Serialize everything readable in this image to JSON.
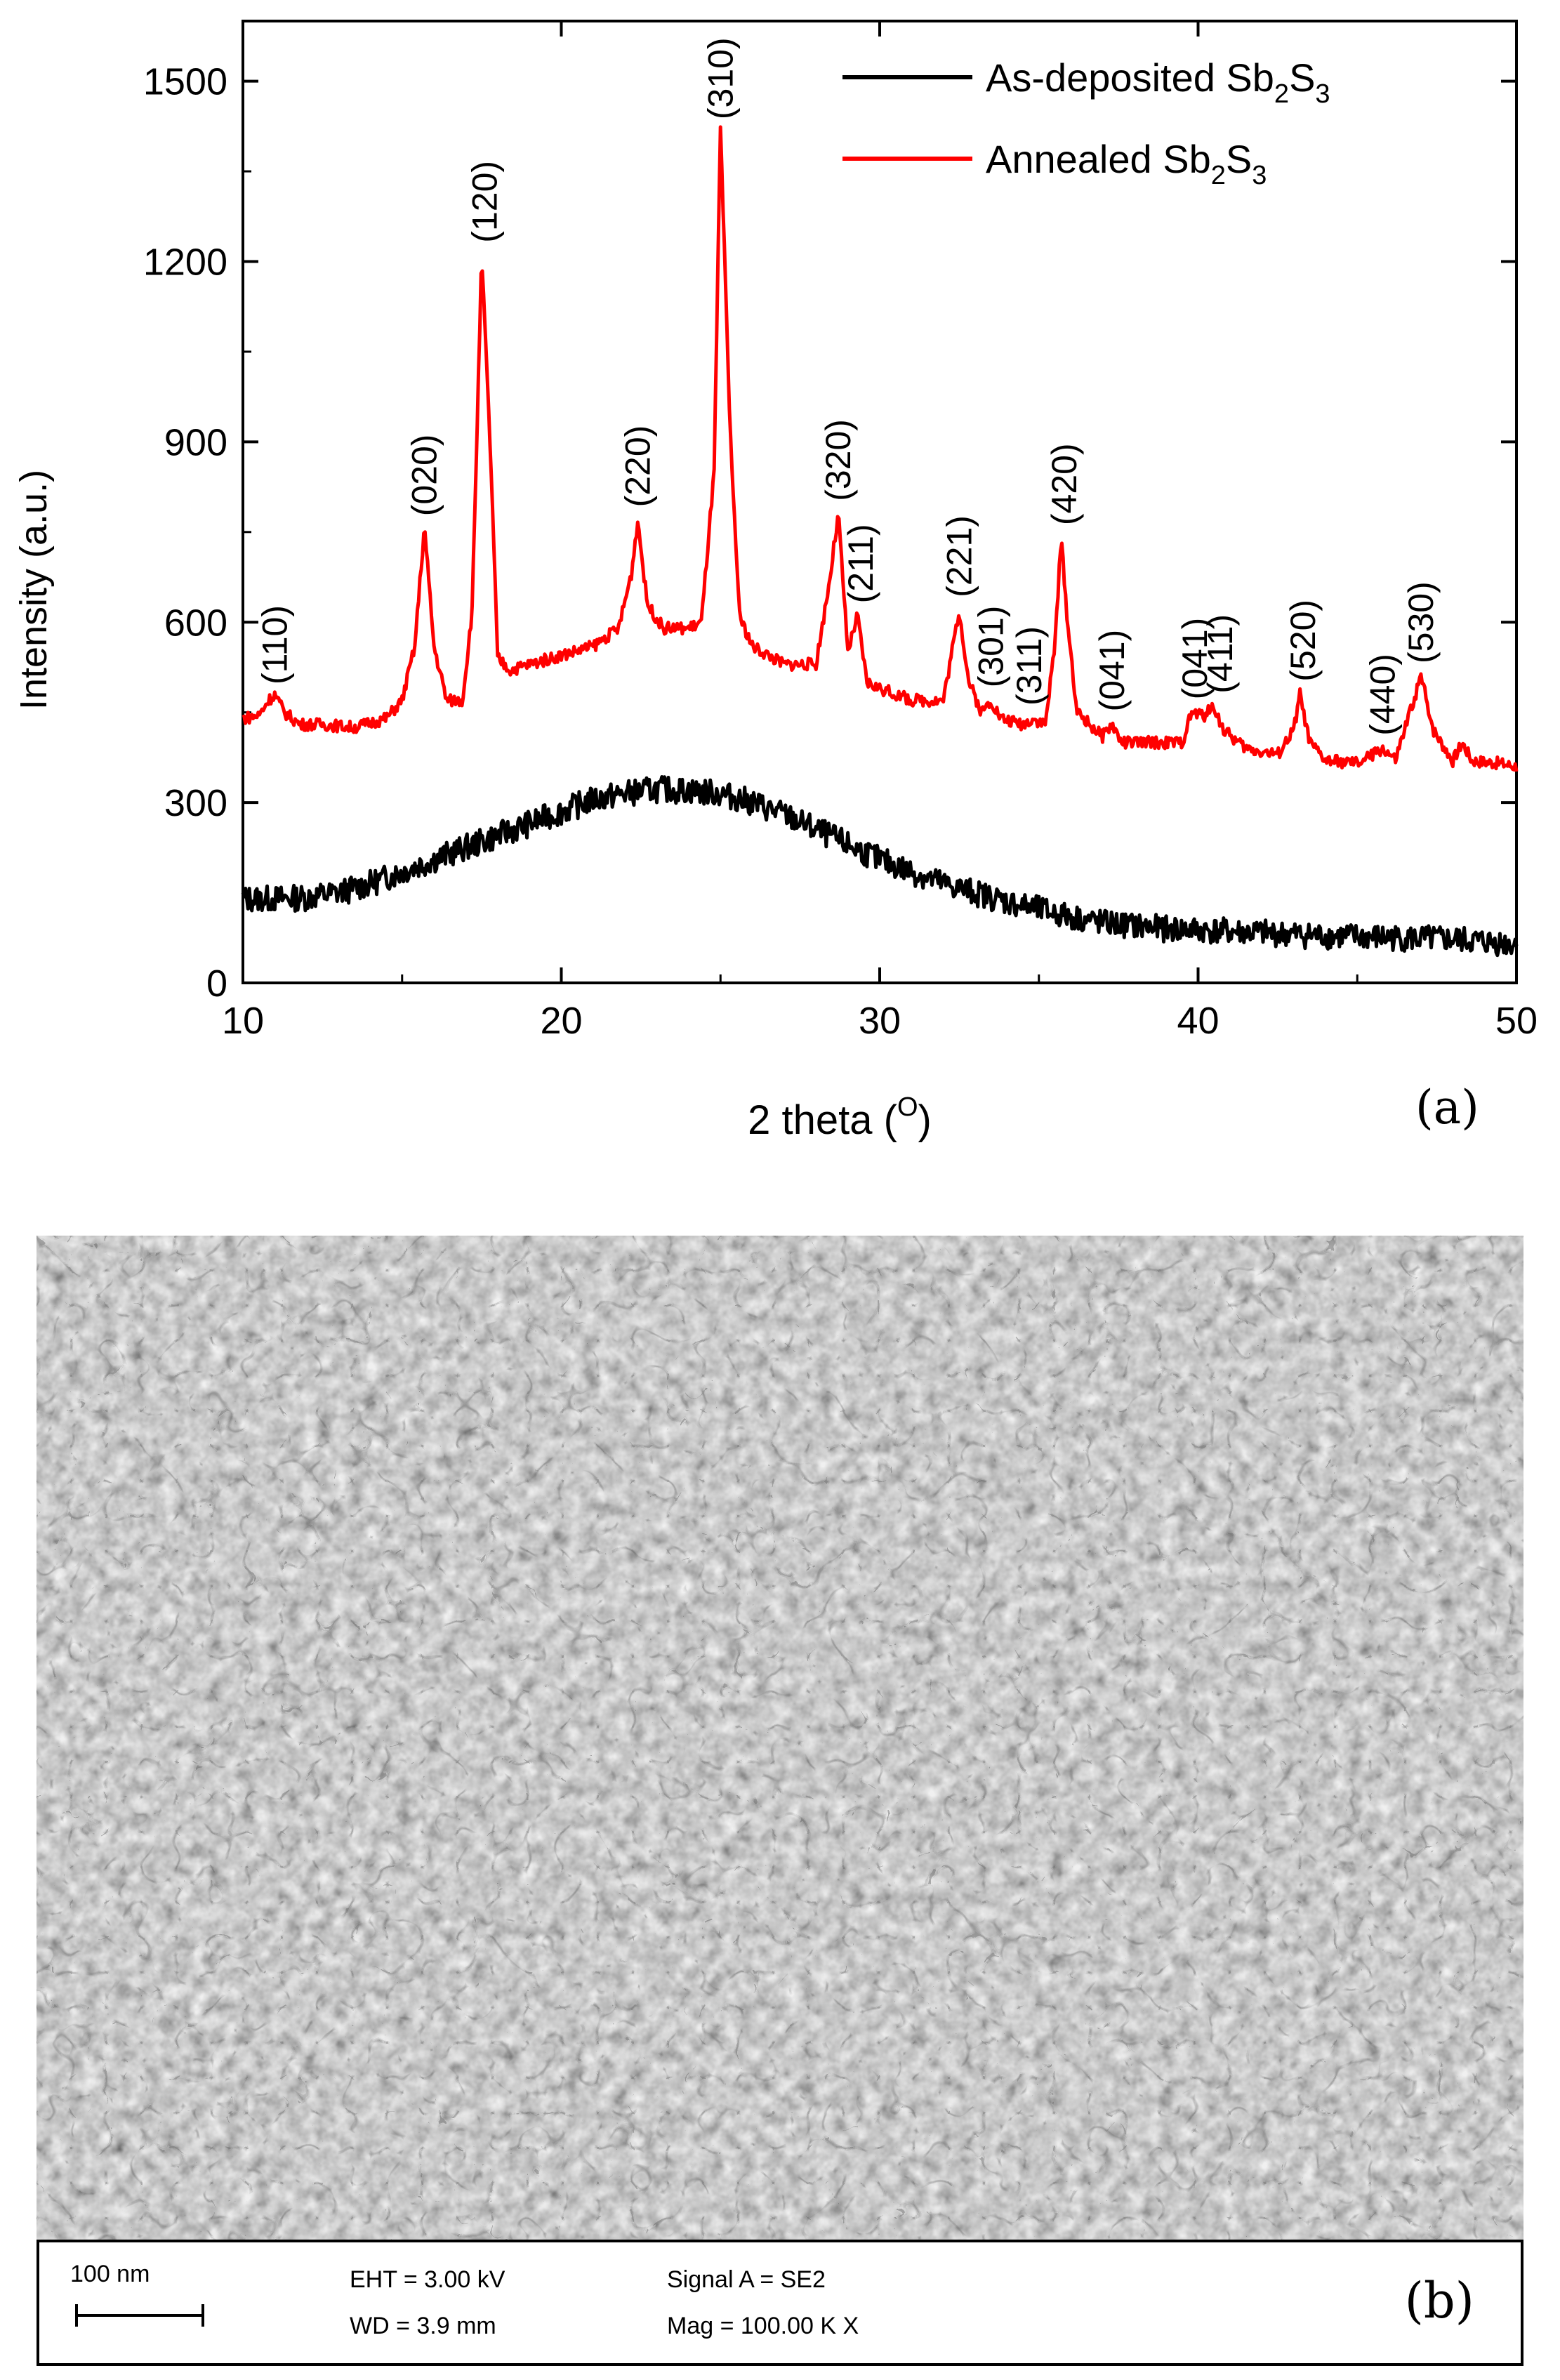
{
  "chart_data": {
    "type": "line",
    "xlabel": "2 theta (",
    "xlabel_sup": "O",
    "xlabel_end": ")",
    "ylabel": "Intensity (a.u.)",
    "xlim": [
      10,
      50
    ],
    "ylim": [
      0,
      1600
    ],
    "xticks": [
      10,
      20,
      30,
      40,
      50
    ],
    "yticks": [
      0,
      300,
      600,
      900,
      1200,
      1500
    ],
    "grid": false,
    "legend_position": "top-right",
    "panel_label": "(a)",
    "series": [
      {
        "name_main": "As-deposited Sb",
        "name_sub1": "2",
        "name_mid": "S",
        "name_sub2": "3",
        "color": "#000000",
        "points": [
          [
            10,
            140
          ],
          [
            11,
            140
          ],
          [
            12,
            142
          ],
          [
            13,
            150
          ],
          [
            14,
            165
          ],
          [
            15,
            185
          ],
          [
            16,
            205
          ],
          [
            17,
            225
          ],
          [
            18,
            245
          ],
          [
            19,
            265
          ],
          [
            20,
            285
          ],
          [
            21,
            305
          ],
          [
            22,
            315
          ],
          [
            23,
            322
          ],
          [
            24,
            320
          ],
          [
            25,
            315
          ],
          [
            26,
            300
          ],
          [
            27,
            280
          ],
          [
            28,
            255
          ],
          [
            29,
            230
          ],
          [
            30,
            205
          ],
          [
            31,
            185
          ],
          [
            32,
            165
          ],
          [
            33,
            150
          ],
          [
            34,
            135
          ],
          [
            35,
            122
          ],
          [
            36,
            110
          ],
          [
            37,
            100
          ],
          [
            38,
            95
          ],
          [
            39,
            90
          ],
          [
            40,
            88
          ],
          [
            42,
            83
          ],
          [
            44,
            78
          ],
          [
            46,
            75
          ],
          [
            48,
            72
          ],
          [
            50,
            65
          ]
        ]
      },
      {
        "name_main": "Annealed Sb",
        "name_sub1": "2",
        "name_mid": "S",
        "name_sub2": "3",
        "color": "#ff0000",
        "points": [
          [
            10,
            440
          ],
          [
            10.5,
            445
          ],
          [
            10.8,
            470
          ],
          [
            11.0,
            480
          ],
          [
            11.3,
            450
          ],
          [
            11.8,
            430
          ],
          [
            12.5,
            430
          ],
          [
            13.5,
            425
          ],
          [
            14.5,
            440
          ],
          [
            15.0,
            470
          ],
          [
            15.4,
            560
          ],
          [
            15.7,
            760
          ],
          [
            16.0,
            560
          ],
          [
            16.4,
            470
          ],
          [
            16.9,
            470
          ],
          [
            17.2,
            620
          ],
          [
            17.5,
            1210
          ],
          [
            17.8,
            850
          ],
          [
            18.0,
            540
          ],
          [
            18.4,
            520
          ],
          [
            19,
            530
          ],
          [
            20,
            545
          ],
          [
            21,
            560
          ],
          [
            21.8,
            590
          ],
          [
            22.2,
            680
          ],
          [
            22.4,
            770
          ],
          [
            22.7,
            630
          ],
          [
            23.2,
            590
          ],
          [
            24.0,
            590
          ],
          [
            24.4,
            600
          ],
          [
            24.8,
            850
          ],
          [
            25.0,
            1420
          ],
          [
            25.3,
            920
          ],
          [
            25.6,
            610
          ],
          [
            26.0,
            560
          ],
          [
            27.0,
            530
          ],
          [
            28.0,
            530
          ],
          [
            28.4,
            660
          ],
          [
            28.7,
            780
          ],
          [
            29.0,
            550
          ],
          [
            29.3,
            610
          ],
          [
            29.6,
            500
          ],
          [
            30.0,
            490
          ],
          [
            31.0,
            470
          ],
          [
            32.0,
            470
          ],
          [
            32.3,
            560
          ],
          [
            32.5,
            620
          ],
          [
            32.8,
            500
          ],
          [
            33.2,
            450
          ],
          [
            33.5,
            470
          ],
          [
            33.8,
            440
          ],
          [
            34.5,
            430
          ],
          [
            34.8,
            440
          ],
          [
            35.2,
            430
          ],
          [
            35.5,
            560
          ],
          [
            35.7,
            740
          ],
          [
            35.9,
            600
          ],
          [
            36.2,
            450
          ],
          [
            37.0,
            410
          ],
          [
            37.3,
            430
          ],
          [
            37.6,
            400
          ],
          [
            38.5,
            400
          ],
          [
            39.5,
            400
          ],
          [
            39.8,
            450
          ],
          [
            40.2,
            445
          ],
          [
            40.5,
            460
          ],
          [
            40.8,
            420
          ],
          [
            41.5,
            390
          ],
          [
            42.5,
            380
          ],
          [
            43.0,
            420
          ],
          [
            43.2,
            480
          ],
          [
            43.5,
            400
          ],
          [
            44.0,
            370
          ],
          [
            45.0,
            365
          ],
          [
            45.5,
            380
          ],
          [
            45.8,
            390
          ],
          [
            46.2,
            370
          ],
          [
            46.6,
            440
          ],
          [
            47.0,
            510
          ],
          [
            47.4,
            420
          ],
          [
            48.0,
            370
          ],
          [
            48.3,
            400
          ],
          [
            48.6,
            370
          ],
          [
            49.5,
            365
          ],
          [
            50,
            360
          ]
        ]
      }
    ],
    "annotations": [
      {
        "label": "(110)",
        "x": 11.0,
        "y": 480
      },
      {
        "label": "(020)",
        "x": 15.7,
        "y": 760
      },
      {
        "label": "(120)",
        "x": 17.6,
        "y": 1215
      },
      {
        "label": "(220)",
        "x": 22.4,
        "y": 775
      },
      {
        "label": "(310)",
        "x": 25.0,
        "y": 1420
      },
      {
        "label": "(320)",
        "x": 28.7,
        "y": 785
      },
      {
        "label": "(211)",
        "x": 29.4,
        "y": 615
      },
      {
        "label": "(221)",
        "x": 32.5,
        "y": 625
      },
      {
        "label": "(301)",
        "x": 33.5,
        "y": 475
      },
      {
        "label": "(311)",
        "x": 34.7,
        "y": 445
      },
      {
        "label": "(420)",
        "x": 35.8,
        "y": 745
      },
      {
        "label": "(041)",
        "x": 37.3,
        "y": 435
      },
      {
        "label": "(041)",
        "x": 39.9,
        "y": 455
      },
      {
        "label": "(411)",
        "x": 40.7,
        "y": 465
      },
      {
        "label": "(520)",
        "x": 43.3,
        "y": 485
      },
      {
        "label": "(440)",
        "x": 45.8,
        "y": 395
      },
      {
        "label": "(530)",
        "x": 47.0,
        "y": 515
      }
    ]
  },
  "sem_info": {
    "scale_bar_label": "100 nm",
    "eht": "EHT =  3.00 kV",
    "wd": "WD =  3.9 mm",
    "signal": "Signal A = SE2",
    "mag": "Mag =  100.00 K X",
    "panel_label": "(b)"
  }
}
